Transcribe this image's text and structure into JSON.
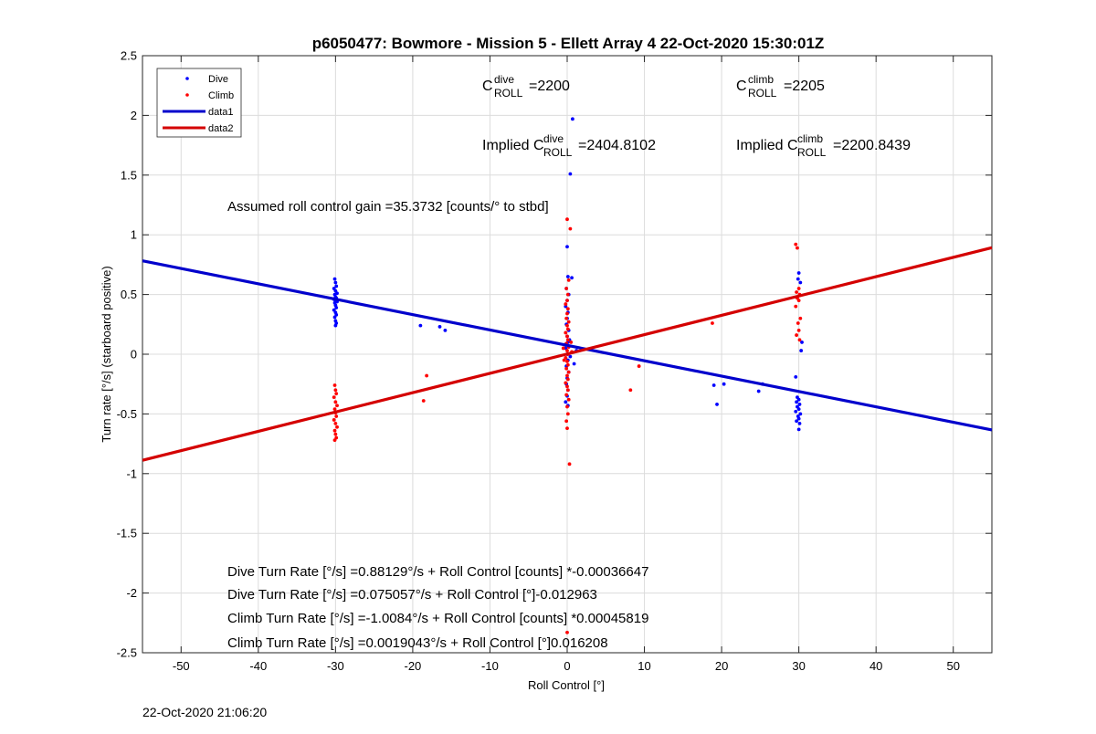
{
  "chart_data": {
    "type": "scatter",
    "title": "p6050477: Bowmore - Mission 5 - Ellett Array 4 22-Oct-2020 15:30:01Z",
    "xlabel": "Roll Control [°]",
    "ylabel": "Turn rate [°/s] (starboard positive)",
    "xlim": [
      -55,
      55
    ],
    "ylim": [
      -2.5,
      2.5
    ],
    "xticks": [
      -50,
      -40,
      -30,
      -20,
      -10,
      0,
      10,
      20,
      30,
      40,
      50
    ],
    "yticks": [
      -2.5,
      -2,
      -1.5,
      -1,
      -0.5,
      0,
      0.5,
      1,
      1.5,
      2,
      2.5
    ],
    "grid": true,
    "legend": {
      "position": "top-left",
      "entries": [
        "Dive",
        "Climb",
        "data1",
        "data2"
      ]
    },
    "colors": {
      "dive": "#0000ff",
      "climb": "#ff0000",
      "data1": "#0000cc",
      "data2": "#d40000"
    },
    "series": [
      {
        "name": "Dive",
        "style": "points",
        "points": [
          [
            -30.1,
            0.63
          ],
          [
            -30.0,
            0.6
          ],
          [
            -29.9,
            0.57
          ],
          [
            -30.2,
            0.55
          ],
          [
            -30.0,
            0.53
          ],
          [
            -29.8,
            0.51
          ],
          [
            -30.1,
            0.5
          ],
          [
            -30.0,
            0.48
          ],
          [
            -29.9,
            0.47
          ],
          [
            -30.2,
            0.46
          ],
          [
            -30.0,
            0.45
          ],
          [
            -29.8,
            0.44
          ],
          [
            -30.1,
            0.43
          ],
          [
            -30.0,
            0.41
          ],
          [
            -29.9,
            0.39
          ],
          [
            -30.2,
            0.37
          ],
          [
            -30.0,
            0.35
          ],
          [
            -29.9,
            0.33
          ],
          [
            -30.1,
            0.31
          ],
          [
            -30.0,
            0.28
          ],
          [
            -29.9,
            0.26
          ],
          [
            -30.0,
            0.24
          ],
          [
            -19.0,
            0.24
          ],
          [
            -16.5,
            0.23
          ],
          [
            -15.8,
            0.2
          ],
          [
            0.0,
            0.9
          ],
          [
            0.1,
            0.65
          ],
          [
            -0.1,
            0.55
          ],
          [
            0.2,
            0.5
          ],
          [
            0.0,
            0.45
          ],
          [
            -0.2,
            0.4
          ],
          [
            0.1,
            0.35
          ],
          [
            0.0,
            0.3
          ],
          [
            -0.1,
            0.25
          ],
          [
            0.2,
            0.2
          ],
          [
            0.0,
            0.15
          ],
          [
            0.1,
            0.1
          ],
          [
            -0.2,
            0.05
          ],
          [
            0.0,
            0.0
          ],
          [
            0.1,
            -0.05
          ],
          [
            -0.1,
            -0.1
          ],
          [
            0.2,
            -0.15
          ],
          [
            0.0,
            -0.2
          ],
          [
            -0.1,
            -0.25
          ],
          [
            0.1,
            -0.3
          ],
          [
            0.0,
            -0.35
          ],
          [
            -0.2,
            -0.4
          ],
          [
            0.1,
            -0.43
          ],
          [
            0.3,
            0.12
          ],
          [
            0.4,
            -0.02
          ],
          [
            -0.3,
            0.08
          ],
          [
            0.7,
            1.97
          ],
          [
            0.4,
            1.51
          ],
          [
            0.6,
            0.64
          ],
          [
            1.2,
            0.03
          ],
          [
            0.9,
            -0.08
          ],
          [
            19.0,
            -0.26
          ],
          [
            19.4,
            -0.42
          ],
          [
            20.3,
            -0.25
          ],
          [
            24.8,
            -0.31
          ],
          [
            25.3,
            -0.25
          ],
          [
            29.6,
            -0.19
          ],
          [
            29.8,
            -0.36
          ],
          [
            30.0,
            -0.38
          ],
          [
            29.7,
            -0.4
          ],
          [
            30.1,
            -0.42
          ],
          [
            29.8,
            -0.44
          ],
          [
            30.0,
            -0.46
          ],
          [
            29.6,
            -0.48
          ],
          [
            30.2,
            -0.5
          ],
          [
            29.9,
            -0.52
          ],
          [
            30.0,
            -0.54
          ],
          [
            29.7,
            -0.56
          ],
          [
            30.1,
            -0.58
          ],
          [
            30.0,
            -0.63
          ],
          [
            30.3,
            0.03
          ],
          [
            30.4,
            0.1
          ],
          [
            30.0,
            0.68
          ],
          [
            29.9,
            0.63
          ],
          [
            30.2,
            0.6
          ]
        ]
      },
      {
        "name": "Climb",
        "style": "points",
        "points": [
          [
            -30.1,
            -0.26
          ],
          [
            -30.0,
            -0.3
          ],
          [
            -29.9,
            -0.33
          ],
          [
            -30.2,
            -0.36
          ],
          [
            -30.0,
            -0.4
          ],
          [
            -29.8,
            -0.43
          ],
          [
            -30.1,
            -0.46
          ],
          [
            -30.0,
            -0.49
          ],
          [
            -29.9,
            -0.52
          ],
          [
            -30.2,
            -0.55
          ],
          [
            -30.0,
            -0.58
          ],
          [
            -29.8,
            -0.61
          ],
          [
            -30.1,
            -0.64
          ],
          [
            -30.0,
            -0.67
          ],
          [
            -29.9,
            -0.7
          ],
          [
            -30.1,
            -0.72
          ],
          [
            -18.2,
            -0.18
          ],
          [
            -18.6,
            -0.39
          ],
          [
            0.0,
            1.13
          ],
          [
            0.4,
            1.05
          ],
          [
            0.2,
            0.62
          ],
          [
            -0.1,
            0.55
          ],
          [
            0.1,
            0.5
          ],
          [
            0.0,
            0.45
          ],
          [
            -0.2,
            0.42
          ],
          [
            0.1,
            0.38
          ],
          [
            0.0,
            0.34
          ],
          [
            -0.1,
            0.3
          ],
          [
            0.2,
            0.27
          ],
          [
            0.0,
            0.24
          ],
          [
            0.1,
            0.21
          ],
          [
            -0.2,
            0.18
          ],
          [
            0.0,
            0.15
          ],
          [
            0.1,
            0.12
          ],
          [
            -0.1,
            0.09
          ],
          [
            0.2,
            0.06
          ],
          [
            0.0,
            0.03
          ],
          [
            0.1,
            0.0
          ],
          [
            -0.2,
            -0.03
          ],
          [
            0.0,
            -0.06
          ],
          [
            0.1,
            -0.09
          ],
          [
            -0.1,
            -0.12
          ],
          [
            0.2,
            -0.15
          ],
          [
            0.0,
            -0.18
          ],
          [
            0.1,
            -0.21
          ],
          [
            -0.2,
            -0.24
          ],
          [
            0.0,
            -0.27
          ],
          [
            0.1,
            -0.3
          ],
          [
            -0.1,
            -0.34
          ],
          [
            0.2,
            -0.38
          ],
          [
            0.0,
            -0.44
          ],
          [
            0.1,
            -0.5
          ],
          [
            -0.1,
            -0.56
          ],
          [
            0.0,
            -0.62
          ],
          [
            0.3,
            -0.92
          ],
          [
            0.0,
            -2.33
          ],
          [
            0.5,
            0.1
          ],
          [
            -0.4,
            -0.05
          ],
          [
            0.6,
            0.02
          ],
          [
            -0.5,
            0.05
          ],
          [
            8.2,
            -0.3
          ],
          [
            9.3,
            -0.1
          ],
          [
            18.8,
            0.26
          ],
          [
            29.6,
            0.92
          ],
          [
            29.8,
            0.89
          ],
          [
            30.0,
            0.55
          ],
          [
            29.7,
            0.52
          ],
          [
            30.1,
            0.5
          ],
          [
            29.8,
            0.47
          ],
          [
            30.0,
            0.45
          ],
          [
            29.6,
            0.4
          ],
          [
            30.2,
            0.3
          ],
          [
            29.9,
            0.26
          ],
          [
            30.0,
            0.2
          ],
          [
            29.7,
            0.16
          ],
          [
            30.1,
            0.12
          ]
        ]
      },
      {
        "name": "data1",
        "style": "line",
        "x": [
          -55,
          55
        ],
        "y": [
          0.7825,
          -0.6339
        ]
      },
      {
        "name": "data2",
        "style": "line",
        "x": [
          -55,
          55
        ],
        "y": [
          -0.8886,
          0.8924
        ]
      }
    ],
    "annotations": {
      "c_dive_main": "C",
      "c_dive_sup": "dive",
      "c_dive_sub": "ROLL",
      "c_dive_value": "=2200",
      "c_climb_main": "C",
      "c_climb_sup": "climb",
      "c_climb_sub": "ROLL",
      "c_climb_value": "=2205",
      "implied_dive_prefix": "Implied C",
      "implied_dive_sup": "dive",
      "implied_dive_sub": "ROLL",
      "implied_dive_value": "=2404.8102",
      "implied_climb_prefix": "Implied C",
      "implied_climb_sup": "climb",
      "implied_climb_sub": "ROLL",
      "implied_climb_value": "=2200.8439",
      "gain": "Assumed roll control gain =35.3732 [counts/° to stbd]",
      "fit_lines": [
        "Dive Turn Rate [°/s] =0.88129°/s + Roll Control [counts] *-0.00036647",
        "Dive Turn Rate [°/s] =0.075057°/s + Roll Control [°]-0.012963",
        "Climb Turn Rate [°/s] =-1.0084°/s + Roll Control [counts] *0.00045819",
        "Climb Turn Rate [°/s] =0.0019043°/s + Roll Control [°]0.016208"
      ]
    }
  },
  "footer": {
    "timestamp": "22-Oct-2020 21:06:20"
  }
}
